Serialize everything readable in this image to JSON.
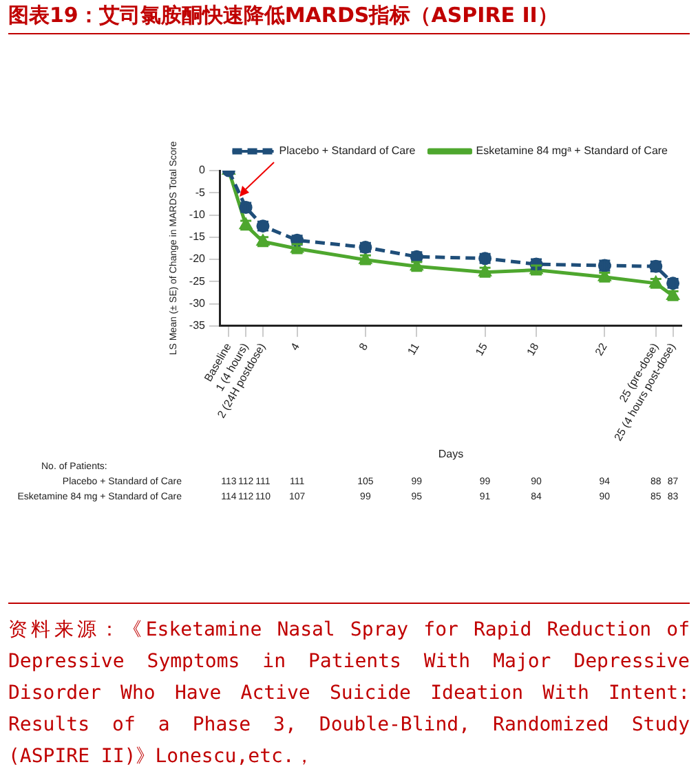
{
  "chart_data": {
    "type": "line",
    "title": "图表19：艾司氯胺酮快速降低MARDS指标（ASPIRE II）",
    "xlabel": "Days",
    "ylabel": "LS Mean (± SE) of Change in MARDS Total Score",
    "x": [
      0,
      1,
      2,
      4,
      8,
      11,
      15,
      18,
      22,
      25,
      26
    ],
    "xlim": [
      -0.5,
      26.5
    ],
    "xticks": [
      {
        "value": 0,
        "label": "Baseline"
      },
      {
        "value": 1,
        "label": "1 (4 hours)"
      },
      {
        "value": 2,
        "label": "2 (24H postdose)"
      },
      4,
      8,
      11,
      15,
      18,
      22,
      {
        "value": 25,
        "label": "25 (pre-dose)"
      },
      {
        "value": 26,
        "label": "25 (4 hours post-dose)"
      }
    ],
    "ylim": [
      -35,
      0
    ],
    "yticks": [
      0,
      -5,
      -10,
      -15,
      -20,
      -25,
      -30,
      -35
    ],
    "grid": false,
    "legend": "top right",
    "series": [
      {
        "name": "Placebo + Standard of Care",
        "color": "#1f4e79",
        "marker": "circle",
        "line_style": "dashed",
        "values": [
          0,
          -8.3,
          -12.5,
          -15.7,
          -17.3,
          -19.4,
          -19.8,
          -21.1,
          -21.4,
          -21.6,
          -25.4
        ],
        "errors": [
          null,
          1,
          1,
          1,
          1,
          1,
          1,
          1.1,
          1.1,
          1.1,
          1
        ]
      },
      {
        "name": "Esketamine 84 mgᵃ + Standard of Care",
        "color": "#4ea72e",
        "marker": "triangle",
        "line_style": "solid",
        "values": [
          0,
          -12.3,
          -16,
          -17.6,
          -20.1,
          -21.6,
          -22.9,
          -22.4,
          -24,
          -25.4,
          -28.2
        ],
        "errors": [
          null,
          1,
          1,
          1,
          1,
          1,
          1,
          1,
          1,
          1,
          1
        ]
      }
    ],
    "annotations": [
      "No. of Patients:",
      "Placebo + Standard of Care",
      "113",
      "112",
      "111",
      "111",
      "105",
      "99",
      "99",
      "90",
      "94",
      "88",
      "87",
      "Esketamine 84 mg + Standard of Care",
      "114",
      "112",
      "110",
      "107",
      "99",
      "95",
      "91",
      "84",
      "90",
      "85",
      "83",
      "资料来源：《Esketamine Nasal Spray for Rapid Reduction of Depressive Symptoms in Patients With Major Depressive Disorder Who Have Active Suicide Ideation With Intent: Results of a Phase 3, Double-Blind, Randomized Study (ASPIRE II)》Lonescu,etc.，"
    ]
  }
}
